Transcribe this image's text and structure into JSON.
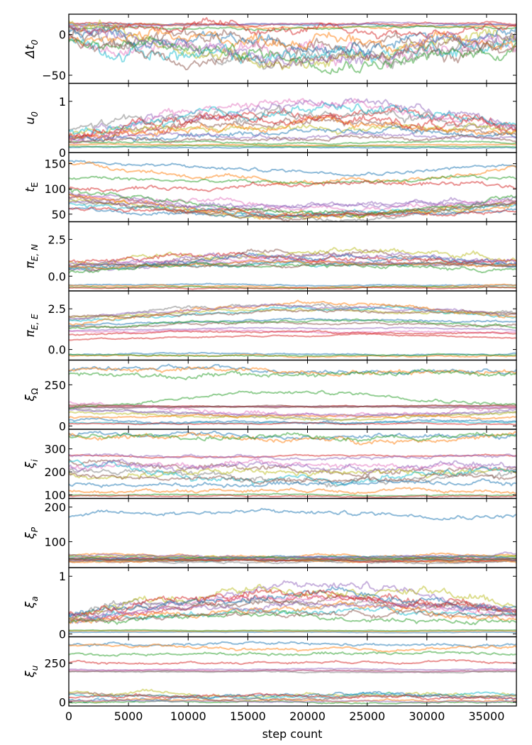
{
  "chart_data": {
    "type": "line",
    "xlabel": "step count",
    "xlim": [
      0,
      37500
    ],
    "x_ticks": [
      "0",
      "5000",
      "10000",
      "15000",
      "20000",
      "25000",
      "30000",
      "35000"
    ],
    "panels": [
      {
        "ylabel": "Δt",
        "sub": "0",
        "ylim": [
          -60,
          25
        ],
        "ticks": [
          {
            "v": 0,
            "l": "0"
          },
          {
            "v": -50,
            "l": "−50"
          }
        ],
        "chains": [
          {
            "level": 12,
            "drift": 0,
            "noise": 1.2
          },
          {
            "level": 10,
            "drift": 0,
            "noise": 1.5
          },
          {
            "level": 8,
            "drift": 0,
            "noise": 1.5
          },
          {
            "level": 14,
            "drift": -1,
            "noise": 1.5
          },
          {
            "level": 12,
            "drift": 0,
            "noise": 1.2
          },
          {
            "level": 5,
            "drift": -20,
            "noise": 10
          },
          {
            "level": -5,
            "drift": -18,
            "noise": 10
          },
          {
            "level": 0,
            "drift": -25,
            "noise": 9
          },
          {
            "level": 5,
            "drift": -30,
            "noise": 9
          },
          {
            "level": -10,
            "drift": -15,
            "noise": 10
          },
          {
            "level": 8,
            "drift": -20,
            "noise": 8
          },
          {
            "level": 0,
            "drift": -10,
            "noise": 8
          },
          {
            "level": -5,
            "drift": -25,
            "noise": 9
          },
          {
            "level": 10,
            "drift": -5,
            "noise": 6
          },
          {
            "level": 2,
            "drift": -28,
            "noise": 9
          },
          {
            "level": -8,
            "drift": -20,
            "noise": 9
          }
        ]
      },
      {
        "ylabel": "u",
        "sub": "0",
        "ylim": [
          0,
          1.35
        ],
        "ticks": [
          {
            "v": 0,
            "l": "0"
          },
          {
            "v": 1,
            "l": "1"
          }
        ],
        "chains": [
          {
            "level": 0.1,
            "drift": 0,
            "noise": 0.01
          },
          {
            "level": 0.15,
            "drift": 0,
            "noise": 0.01
          },
          {
            "level": 0.2,
            "drift": 0,
            "noise": 0.02
          },
          {
            "level": 0.3,
            "drift": 0.5,
            "noise": 0.1
          },
          {
            "level": 0.35,
            "drift": 0.6,
            "noise": 0.1
          },
          {
            "level": 0.3,
            "drift": 0.3,
            "noise": 0.08
          },
          {
            "level": 0.25,
            "drift": 0.7,
            "noise": 0.1
          },
          {
            "level": 0.4,
            "drift": 0.4,
            "noise": 0.1
          },
          {
            "level": 0.3,
            "drift": 0.2,
            "noise": 0.07
          },
          {
            "level": 0.35,
            "drift": 0.5,
            "noise": 0.1
          },
          {
            "level": 0.3,
            "drift": 0.1,
            "noise": 0.06
          },
          {
            "level": 0.35,
            "drift": 0.2,
            "noise": 0.08
          },
          {
            "level": 0.12,
            "drift": 0,
            "noise": 0.01
          },
          {
            "level": 0.3,
            "drift": 0.4,
            "noise": 0.1
          },
          {
            "level": 0.25,
            "drift": 0.1,
            "noise": 0.05
          },
          {
            "level": 0.2,
            "drift": 0.1,
            "noise": 0.04
          }
        ]
      },
      {
        "ylabel": "t",
        "sub": "E",
        "subUpright": true,
        "ylim": [
          35,
          172
        ],
        "ticks": [
          {
            "v": 150,
            "l": "150"
          },
          {
            "v": 100,
            "l": "100"
          },
          {
            "v": 50,
            "l": "50"
          }
        ],
        "chains": [
          {
            "level": 155,
            "drift": -20,
            "noise": 4
          },
          {
            "level": 150,
            "drift": -35,
            "noise": 5
          },
          {
            "level": 120,
            "drift": -5,
            "noise": 4
          },
          {
            "level": 100,
            "drift": 10,
            "noise": 5
          },
          {
            "level": 95,
            "drift": -30,
            "noise": 5
          },
          {
            "level": 90,
            "drift": -40,
            "noise": 5
          },
          {
            "level": 85,
            "drift": -20,
            "noise": 6
          },
          {
            "level": 80,
            "drift": -35,
            "noise": 5
          },
          {
            "level": 75,
            "drift": -25,
            "noise": 5
          },
          {
            "level": 70,
            "drift": -15,
            "noise": 5
          },
          {
            "level": 65,
            "drift": -20,
            "noise": 4
          },
          {
            "level": 90,
            "drift": -45,
            "noise": 6
          },
          {
            "level": 100,
            "drift": -50,
            "noise": 5
          },
          {
            "level": 60,
            "drift": -10,
            "noise": 4
          },
          {
            "level": 70,
            "drift": 0,
            "noise": 5
          },
          {
            "level": 80,
            "drift": -30,
            "noise": 5
          }
        ]
      },
      {
        "ylabel": "π",
        "sub": "E, N",
        "ylim": [
          -1.0,
          3.7
        ],
        "ticks": [
          {
            "v": 2.5,
            "l": "2.5"
          },
          {
            "v": 0,
            "l": "0.0"
          }
        ],
        "chains": [
          {
            "level": -0.6,
            "drift": 0,
            "noise": 0.05
          },
          {
            "level": -0.65,
            "drift": -0.05,
            "noise": 0.05
          },
          {
            "level": -0.75,
            "drift": 0,
            "noise": 0.05
          },
          {
            "level": -0.8,
            "drift": 0,
            "noise": 0.04
          },
          {
            "level": 0.5,
            "drift": 0.5,
            "noise": 0.15
          },
          {
            "level": 0.6,
            "drift": 0.8,
            "noise": 0.2
          },
          {
            "level": 0.7,
            "drift": 0.3,
            "noise": 0.15
          },
          {
            "level": 0.4,
            "drift": 0.6,
            "noise": 0.15
          },
          {
            "level": 0.8,
            "drift": 1.0,
            "noise": 0.2
          },
          {
            "level": 0.5,
            "drift": 0.4,
            "noise": 0.15
          },
          {
            "level": 0.6,
            "drift": 0.7,
            "noise": 0.2
          },
          {
            "level": 0.7,
            "drift": 0.2,
            "noise": 0.1
          },
          {
            "level": 0.3,
            "drift": 0.5,
            "noise": 0.15
          },
          {
            "level": 0.9,
            "drift": 0.5,
            "noise": 0.2
          },
          {
            "level": 0.6,
            "drift": 0.9,
            "noise": 0.2
          },
          {
            "level": 0.7,
            "drift": 0.1,
            "noise": 0.1
          }
        ]
      },
      {
        "ylabel": "π",
        "sub": "E, E",
        "ylim": [
          -0.65,
          3.6
        ],
        "ticks": [
          {
            "v": 2.5,
            "l": "2.5"
          },
          {
            "v": 0,
            "l": "0.0"
          }
        ],
        "chains": [
          {
            "level": -0.3,
            "drift": 0,
            "noise": 0.05
          },
          {
            "level": -0.4,
            "drift": 0,
            "noise": 0.05
          },
          {
            "level": -0.35,
            "drift": 0,
            "noise": 0.04
          },
          {
            "level": 0.6,
            "drift": 0.3,
            "noise": 0.05
          },
          {
            "level": 1.2,
            "drift": 0.1,
            "noise": 0.05
          },
          {
            "level": 1.4,
            "drift": 0.2,
            "noise": 0.08
          },
          {
            "level": 1.1,
            "drift": 0,
            "noise": 0.06
          },
          {
            "level": 1.8,
            "drift": 1.0,
            "noise": 0.12
          },
          {
            "level": 1.9,
            "drift": 0.6,
            "noise": 0.1
          },
          {
            "level": 1.7,
            "drift": 0.8,
            "noise": 0.1
          },
          {
            "level": 1.5,
            "drift": 0.3,
            "noise": 0.08
          },
          {
            "level": 1.6,
            "drift": 1.2,
            "noise": 0.12
          },
          {
            "level": 1.3,
            "drift": 0.5,
            "noise": 0.08
          },
          {
            "level": 0.9,
            "drift": 0.2,
            "noise": 0.06
          },
          {
            "level": 1.8,
            "drift": 0.9,
            "noise": 0.1
          },
          {
            "level": 2.0,
            "drift": 0.4,
            "noise": 0.1
          }
        ]
      },
      {
        "ylabel": "ξ",
        "sub": "Ω",
        "subUpright": true,
        "ylim": [
          -20,
          400
        ],
        "ticks": [
          {
            "v": 250,
            "l": "250"
          },
          {
            "v": 0,
            "l": "0"
          }
        ],
        "chains": [
          {
            "level": 340,
            "drift": 0,
            "noise": 15
          },
          {
            "level": 330,
            "drift": 10,
            "noise": 15
          },
          {
            "level": 300,
            "drift": 20,
            "noise": 18
          },
          {
            "level": 120,
            "drift": 0,
            "noise": 3
          },
          {
            "level": 115,
            "drift": 0,
            "noise": 3
          },
          {
            "level": 110,
            "drift": 5,
            "noise": 4
          },
          {
            "level": 150,
            "drift": -80,
            "noise": 15
          },
          {
            "level": 100,
            "drift": -40,
            "noise": 10
          },
          {
            "level": 80,
            "drift": -30,
            "noise": 10
          },
          {
            "level": 20,
            "drift": 0,
            "noise": 5
          },
          {
            "level": 40,
            "drift": -20,
            "noise": 8
          },
          {
            "level": 60,
            "drift": 0,
            "noise": 8
          },
          {
            "level": 100,
            "drift": 100,
            "noise": 12
          },
          {
            "level": 10,
            "drift": 5,
            "noise": 4
          },
          {
            "level": 90,
            "drift": -20,
            "noise": 8
          },
          {
            "level": 125,
            "drift": -5,
            "noise": 4
          }
        ]
      },
      {
        "ylabel": "ξ",
        "sub": "i",
        "ylim": [
          85,
          385
        ],
        "ticks": [
          {
            "v": 300,
            "l": "300"
          },
          {
            "v": 200,
            "l": "200"
          },
          {
            "v": 100,
            "l": "100"
          }
        ],
        "chains": [
          {
            "level": 360,
            "drift": 0,
            "noise": 10
          },
          {
            "level": 355,
            "drift": -10,
            "noise": 12
          },
          {
            "level": 350,
            "drift": 5,
            "noise": 12
          },
          {
            "level": 270,
            "drift": 0,
            "noise": 4
          },
          {
            "level": 280,
            "drift": -20,
            "noise": 8
          },
          {
            "level": 260,
            "drift": -60,
            "noise": 15
          },
          {
            "level": 220,
            "drift": 10,
            "noise": 15
          },
          {
            "level": 200,
            "drift": -30,
            "noise": 15
          },
          {
            "level": 180,
            "drift": 20,
            "noise": 15
          },
          {
            "level": 240,
            "drift": -80,
            "noise": 15
          },
          {
            "level": 150,
            "drift": 0,
            "noise": 10
          },
          {
            "level": 120,
            "drift": 0,
            "noise": 8
          },
          {
            "level": 100,
            "drift": 0,
            "noise": 3
          },
          {
            "level": 95,
            "drift": 0,
            "noise": 3
          },
          {
            "level": 210,
            "drift": 20,
            "noise": 15
          },
          {
            "level": 190,
            "drift": -20,
            "noise": 12
          }
        ]
      },
      {
        "ylabel": "ξ",
        "sub": "P",
        "ylim": [
          25,
          225
        ],
        "ticks": [
          {
            "v": 200,
            "l": "200"
          },
          {
            "v": 100,
            "l": "100"
          }
        ],
        "chains": [
          {
            "level": 175,
            "drift": 10,
            "noise": 7
          },
          {
            "level": 60,
            "drift": 0,
            "noise": 4
          },
          {
            "level": 55,
            "drift": 0,
            "noise": 4
          },
          {
            "level": 50,
            "drift": 0,
            "noise": 3
          },
          {
            "level": 48,
            "drift": 0,
            "noise": 3
          },
          {
            "level": 45,
            "drift": 0,
            "noise": 3
          },
          {
            "level": 52,
            "drift": 0,
            "noise": 3
          },
          {
            "level": 42,
            "drift": 0,
            "noise": 3
          },
          {
            "level": 58,
            "drift": -5,
            "noise": 4
          },
          {
            "level": 47,
            "drift": 0,
            "noise": 3
          },
          {
            "level": 53,
            "drift": 2,
            "noise": 3
          },
          {
            "level": 44,
            "drift": 0,
            "noise": 3
          },
          {
            "level": 50,
            "drift": 0,
            "noise": 3
          },
          {
            "level": 46,
            "drift": 0,
            "noise": 3
          },
          {
            "level": 62,
            "drift": -5,
            "noise": 4
          },
          {
            "level": 49,
            "drift": 0,
            "noise": 3
          }
        ]
      },
      {
        "ylabel": "ξ",
        "sub": "a",
        "ylim": [
          -0.05,
          1.15
        ],
        "ticks": [
          {
            "v": 1,
            "l": "1"
          },
          {
            "v": 0,
            "l": "0"
          }
        ],
        "chains": [
          {
            "level": 0.03,
            "drift": 0,
            "noise": 0.005
          },
          {
            "level": 0.05,
            "drift": 0,
            "noise": 0.005
          },
          {
            "level": 0.06,
            "drift": 0,
            "noise": 0.005
          },
          {
            "level": 0.25,
            "drift": 0.4,
            "noise": 0.07
          },
          {
            "level": 0.3,
            "drift": 0.5,
            "noise": 0.08
          },
          {
            "level": 0.35,
            "drift": 0.2,
            "noise": 0.06
          },
          {
            "level": 0.2,
            "drift": 0.4,
            "noise": 0.07
          },
          {
            "level": 0.3,
            "drift": 0.3,
            "noise": 0.07
          },
          {
            "level": 0.25,
            "drift": 0.6,
            "noise": 0.08
          },
          {
            "level": 0.3,
            "drift": 0.1,
            "noise": 0.05
          },
          {
            "level": 0.35,
            "drift": 0.3,
            "noise": 0.07
          },
          {
            "level": 0.25,
            "drift": 0.2,
            "noise": 0.06
          },
          {
            "level": 0.2,
            "drift": 0.1,
            "noise": 0.05
          },
          {
            "level": 0.3,
            "drift": 0.4,
            "noise": 0.08
          },
          {
            "level": 0.28,
            "drift": 0.25,
            "noise": 0.06
          },
          {
            "level": 0.22,
            "drift": 0.15,
            "noise": 0.05
          }
        ]
      },
      {
        "ylabel": "ξ",
        "sub": "u",
        "ylim": [
          -25,
          420
        ],
        "ticks": [
          {
            "v": 250,
            "l": "250"
          },
          {
            "v": 0,
            "l": "0"
          }
        ],
        "chains": [
          {
            "level": 370,
            "drift": 0,
            "noise": 10
          },
          {
            "level": 360,
            "drift": -20,
            "noise": 10
          },
          {
            "level": 300,
            "drift": 20,
            "noise": 10
          },
          {
            "level": 250,
            "drift": 10,
            "noise": 8
          },
          {
            "level": 210,
            "drift": 0,
            "noise": 4
          },
          {
            "level": 200,
            "drift": 0,
            "noise": 4
          },
          {
            "level": 205,
            "drift": -5,
            "noise": 4
          },
          {
            "level": 195,
            "drift": 0,
            "noise": 4
          },
          {
            "level": 60,
            "drift": -10,
            "noise": 15
          },
          {
            "level": 40,
            "drift": 0,
            "noise": 10
          },
          {
            "level": 20,
            "drift": 20,
            "noise": 15
          },
          {
            "level": 10,
            "drift": 0,
            "noise": 8
          },
          {
            "level": 0,
            "drift": 0,
            "noise": 5
          },
          {
            "level": 30,
            "drift": 10,
            "noise": 10
          },
          {
            "level": 5,
            "drift": 0,
            "noise": 4
          },
          {
            "level": 50,
            "drift": -20,
            "noise": 10
          }
        ]
      }
    ],
    "colors": [
      "#1f77b4",
      "#ff7f0e",
      "#2ca02c",
      "#d62728",
      "#9467bd",
      "#8c564b",
      "#e377c2",
      "#7f7f7f",
      "#bcbd22",
      "#17becf"
    ]
  }
}
